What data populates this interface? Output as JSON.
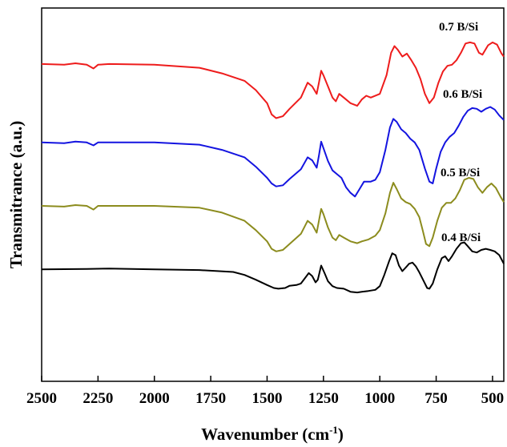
{
  "chart_data": {
    "type": "line",
    "xlabel_base": "Wavenumber (cm",
    "xlabel_sup": "-1",
    "xlabel_close": ")",
    "ylabel": "Transmitrance (a.u.)",
    "xlim": [
      2500,
      450
    ],
    "x_reversed": true,
    "y_axis_ticks": false,
    "x_ticks": [
      2500,
      2250,
      2000,
      1750,
      1500,
      1250,
      1000,
      750,
      500
    ],
    "x_tick_labels": [
      "2500",
      "2250",
      "2000",
      "1750",
      "1500",
      "1250",
      "1000",
      "750",
      "500"
    ],
    "grid": false,
    "legend": "none",
    "series": [
      {
        "name": "0.7 B/Si",
        "color": "#ee1c1c",
        "points": [
          [
            2500,
            0.85
          ],
          [
            2400,
            0.848
          ],
          [
            2350,
            0.852
          ],
          [
            2300,
            0.848
          ],
          [
            2270,
            0.838
          ],
          [
            2250,
            0.848
          ],
          [
            2200,
            0.85
          ],
          [
            2000,
            0.848
          ],
          [
            1800,
            0.84
          ],
          [
            1700,
            0.825
          ],
          [
            1600,
            0.805
          ],
          [
            1550,
            0.78
          ],
          [
            1500,
            0.745
          ],
          [
            1480,
            0.715
          ],
          [
            1460,
            0.705
          ],
          [
            1430,
            0.71
          ],
          [
            1400,
            0.73
          ],
          [
            1350,
            0.76
          ],
          [
            1320,
            0.8
          ],
          [
            1300,
            0.79
          ],
          [
            1280,
            0.77
          ],
          [
            1270,
            0.8
          ],
          [
            1260,
            0.832
          ],
          [
            1250,
            0.82
          ],
          [
            1230,
            0.79
          ],
          [
            1210,
            0.76
          ],
          [
            1195,
            0.75
          ],
          [
            1180,
            0.77
          ],
          [
            1160,
            0.76
          ],
          [
            1130,
            0.745
          ],
          [
            1100,
            0.738
          ],
          [
            1080,
            0.755
          ],
          [
            1060,
            0.765
          ],
          [
            1040,
            0.76
          ],
          [
            1000,
            0.77
          ],
          [
            970,
            0.82
          ],
          [
            950,
            0.88
          ],
          [
            935,
            0.898
          ],
          [
            920,
            0.888
          ],
          [
            900,
            0.87
          ],
          [
            880,
            0.878
          ],
          [
            860,
            0.86
          ],
          [
            840,
            0.84
          ],
          [
            820,
            0.81
          ],
          [
            800,
            0.77
          ],
          [
            780,
            0.745
          ],
          [
            760,
            0.76
          ],
          [
            740,
            0.8
          ],
          [
            720,
            0.83
          ],
          [
            700,
            0.845
          ],
          [
            680,
            0.848
          ],
          [
            660,
            0.86
          ],
          [
            640,
            0.88
          ],
          [
            620,
            0.905
          ],
          [
            600,
            0.908
          ],
          [
            580,
            0.905
          ],
          [
            560,
            0.88
          ],
          [
            545,
            0.875
          ],
          [
            520,
            0.9
          ],
          [
            500,
            0.908
          ],
          [
            480,
            0.902
          ],
          [
            460,
            0.878
          ],
          [
            450,
            0.87
          ]
        ]
      },
      {
        "name": "0.6 B/Si",
        "color": "#1414e0",
        "points": [
          [
            2500,
            0.64
          ],
          [
            2400,
            0.638
          ],
          [
            2350,
            0.642
          ],
          [
            2300,
            0.64
          ],
          [
            2270,
            0.632
          ],
          [
            2250,
            0.64
          ],
          [
            2200,
            0.64
          ],
          [
            2000,
            0.64
          ],
          [
            1800,
            0.634
          ],
          [
            1700,
            0.62
          ],
          [
            1600,
            0.6
          ],
          [
            1550,
            0.575
          ],
          [
            1500,
            0.545
          ],
          [
            1480,
            0.53
          ],
          [
            1460,
            0.522
          ],
          [
            1430,
            0.525
          ],
          [
            1400,
            0.542
          ],
          [
            1350,
            0.568
          ],
          [
            1320,
            0.6
          ],
          [
            1300,
            0.592
          ],
          [
            1280,
            0.572
          ],
          [
            1270,
            0.605
          ],
          [
            1260,
            0.642
          ],
          [
            1250,
            0.625
          ],
          [
            1230,
            0.59
          ],
          [
            1210,
            0.565
          ],
          [
            1190,
            0.555
          ],
          [
            1170,
            0.545
          ],
          [
            1150,
            0.52
          ],
          [
            1130,
            0.505
          ],
          [
            1110,
            0.495
          ],
          [
            1090,
            0.515
          ],
          [
            1070,
            0.535
          ],
          [
            1040,
            0.535
          ],
          [
            1020,
            0.54
          ],
          [
            1000,
            0.56
          ],
          [
            975,
            0.62
          ],
          [
            955,
            0.68
          ],
          [
            940,
            0.703
          ],
          [
            925,
            0.695
          ],
          [
            905,
            0.675
          ],
          [
            885,
            0.665
          ],
          [
            865,
            0.65
          ],
          [
            845,
            0.64
          ],
          [
            825,
            0.62
          ],
          [
            800,
            0.57
          ],
          [
            780,
            0.535
          ],
          [
            765,
            0.53
          ],
          [
            750,
            0.57
          ],
          [
            730,
            0.615
          ],
          [
            710,
            0.64
          ],
          [
            690,
            0.655
          ],
          [
            670,
            0.665
          ],
          [
            650,
            0.685
          ],
          [
            630,
            0.708
          ],
          [
            610,
            0.725
          ],
          [
            590,
            0.732
          ],
          [
            570,
            0.73
          ],
          [
            550,
            0.722
          ],
          [
            530,
            0.73
          ],
          [
            510,
            0.735
          ],
          [
            490,
            0.728
          ],
          [
            470,
            0.712
          ],
          [
            450,
            0.7
          ]
        ]
      },
      {
        "name": "0.5 B/Si",
        "color": "#8c8c1e",
        "points": [
          [
            2500,
            0.47
          ],
          [
            2400,
            0.468
          ],
          [
            2350,
            0.472
          ],
          [
            2300,
            0.47
          ],
          [
            2270,
            0.46
          ],
          [
            2250,
            0.47
          ],
          [
            2200,
            0.47
          ],
          [
            2000,
            0.47
          ],
          [
            1800,
            0.465
          ],
          [
            1700,
            0.452
          ],
          [
            1600,
            0.43
          ],
          [
            1550,
            0.405
          ],
          [
            1500,
            0.375
          ],
          [
            1480,
            0.355
          ],
          [
            1460,
            0.348
          ],
          [
            1430,
            0.352
          ],
          [
            1400,
            0.368
          ],
          [
            1350,
            0.395
          ],
          [
            1320,
            0.43
          ],
          [
            1300,
            0.42
          ],
          [
            1280,
            0.398
          ],
          [
            1270,
            0.43
          ],
          [
            1260,
            0.462
          ],
          [
            1250,
            0.448
          ],
          [
            1230,
            0.412
          ],
          [
            1210,
            0.385
          ],
          [
            1195,
            0.378
          ],
          [
            1180,
            0.392
          ],
          [
            1160,
            0.385
          ],
          [
            1130,
            0.375
          ],
          [
            1100,
            0.37
          ],
          [
            1080,
            0.375
          ],
          [
            1050,
            0.38
          ],
          [
            1020,
            0.39
          ],
          [
            1000,
            0.405
          ],
          [
            975,
            0.45
          ],
          [
            955,
            0.505
          ],
          [
            940,
            0.532
          ],
          [
            925,
            0.515
          ],
          [
            905,
            0.49
          ],
          [
            885,
            0.48
          ],
          [
            865,
            0.475
          ],
          [
            845,
            0.462
          ],
          [
            825,
            0.44
          ],
          [
            810,
            0.405
          ],
          [
            795,
            0.368
          ],
          [
            780,
            0.362
          ],
          [
            765,
            0.385
          ],
          [
            745,
            0.43
          ],
          [
            725,
            0.465
          ],
          [
            705,
            0.478
          ],
          [
            685,
            0.478
          ],
          [
            665,
            0.49
          ],
          [
            645,
            0.512
          ],
          [
            625,
            0.54
          ],
          [
            605,
            0.545
          ],
          [
            585,
            0.542
          ],
          [
            565,
            0.52
          ],
          [
            545,
            0.505
          ],
          [
            525,
            0.52
          ],
          [
            505,
            0.53
          ],
          [
            485,
            0.518
          ],
          [
            465,
            0.495
          ],
          [
            450,
            0.48
          ]
        ]
      },
      {
        "name": "0.4 B/Si",
        "color": "#000000",
        "points": [
          [
            2500,
            0.3
          ],
          [
            2300,
            0.301
          ],
          [
            2200,
            0.302
          ],
          [
            2000,
            0.3
          ],
          [
            1800,
            0.298
          ],
          [
            1650,
            0.293
          ],
          [
            1600,
            0.285
          ],
          [
            1550,
            0.272
          ],
          [
            1500,
            0.258
          ],
          [
            1470,
            0.25
          ],
          [
            1450,
            0.248
          ],
          [
            1420,
            0.25
          ],
          [
            1400,
            0.256
          ],
          [
            1370,
            0.258
          ],
          [
            1350,
            0.262
          ],
          [
            1330,
            0.278
          ],
          [
            1315,
            0.29
          ],
          [
            1300,
            0.282
          ],
          [
            1285,
            0.265
          ],
          [
            1275,
            0.272
          ],
          [
            1260,
            0.31
          ],
          [
            1245,
            0.29
          ],
          [
            1230,
            0.268
          ],
          [
            1210,
            0.255
          ],
          [
            1190,
            0.25
          ],
          [
            1160,
            0.248
          ],
          [
            1130,
            0.24
          ],
          [
            1100,
            0.238
          ],
          [
            1080,
            0.24
          ],
          [
            1050,
            0.242
          ],
          [
            1020,
            0.245
          ],
          [
            1000,
            0.255
          ],
          [
            980,
            0.285
          ],
          [
            960,
            0.32
          ],
          [
            945,
            0.343
          ],
          [
            930,
            0.338
          ],
          [
            915,
            0.31
          ],
          [
            900,
            0.295
          ],
          [
            885,
            0.305
          ],
          [
            870,
            0.315
          ],
          [
            855,
            0.318
          ],
          [
            840,
            0.308
          ],
          [
            825,
            0.292
          ],
          [
            805,
            0.268
          ],
          [
            790,
            0.25
          ],
          [
            780,
            0.248
          ],
          [
            765,
            0.262
          ],
          [
            745,
            0.3
          ],
          [
            725,
            0.33
          ],
          [
            710,
            0.335
          ],
          [
            695,
            0.322
          ],
          [
            680,
            0.335
          ],
          [
            660,
            0.355
          ],
          [
            640,
            0.37
          ],
          [
            625,
            0.372
          ],
          [
            610,
            0.362
          ],
          [
            590,
            0.348
          ],
          [
            570,
            0.345
          ],
          [
            550,
            0.352
          ],
          [
            530,
            0.355
          ],
          [
            510,
            0.352
          ],
          [
            490,
            0.348
          ],
          [
            470,
            0.338
          ],
          [
            450,
            0.315
          ]
        ]
      }
    ]
  }
}
